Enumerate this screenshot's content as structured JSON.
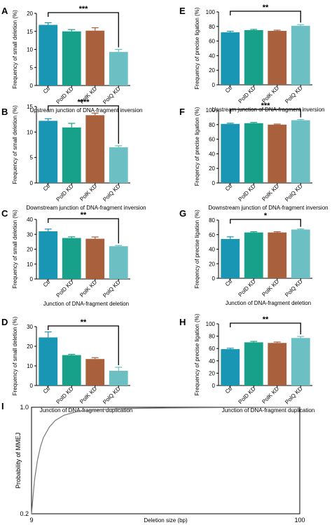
{
  "colors": [
    "#1a96b5",
    "#17a08a",
    "#a9603c",
    "#6cbfc3"
  ],
  "bar_panels": [
    {
      "panel_letter": "A",
      "ylabel": "Frequency of small deletion (%)",
      "xlabel": "Upstream junction of DNA-fragment inversion",
      "sig": "***",
      "sig_between": [
        0,
        3
      ],
      "yticks": [
        "0",
        "5",
        "10",
        "15",
        "20"
      ]
    },
    {
      "panel_letter": "B",
      "ylabel": "Frequency of small deletion (%)",
      "xlabel": "Downstream junction of DNA-fragment inversion",
      "sig": "****",
      "sig_between": [
        0,
        3
      ],
      "yticks": [
        "0",
        "5",
        "10",
        "15"
      ]
    },
    {
      "panel_letter": "C",
      "ylabel": "Frequency of small deletion (%)",
      "xlabel": "Junction of DNA-fragment deletion",
      "sig": "**",
      "sig_between": [
        0,
        3
      ],
      "yticks": [
        "0",
        "10",
        "20",
        "30",
        "40"
      ]
    },
    {
      "panel_letter": "D",
      "ylabel": "Frequency of small deletion (%)",
      "xlabel": "Junction of DNA-fragment duplication",
      "sig": "**",
      "sig_between": [
        0,
        3
      ],
      "yticks": [
        "0",
        "10",
        "20",
        "30"
      ]
    },
    {
      "panel_letter": "E",
      "ylabel": "Frequency of precise ligation (%)",
      "xlabel": "Upstream junction of DNA-fragment inversion",
      "sig": "**",
      "sig_between": [
        0,
        3
      ],
      "yticks": [
        "0",
        "20",
        "40",
        "60",
        "80",
        "100"
      ]
    },
    {
      "panel_letter": "F",
      "ylabel": "Freqency of precise ligation (%)",
      "xlabel": "Downstream junction of DNA-fragment inversion",
      "sig": "***",
      "sig_between": [
        0,
        3
      ],
      "yticks": [
        "0",
        "20",
        "40",
        "60",
        "80",
        "100"
      ]
    },
    {
      "panel_letter": "G",
      "ylabel": "Freqency of precise ligation (%)",
      "xlabel": "Junction of DNA-fragment deletion",
      "sig": "*",
      "sig_between": [
        0,
        3
      ],
      "yticks": [
        "0",
        "20",
        "40",
        "60",
        "80"
      ]
    },
    {
      "panel_letter": "H",
      "ylabel": "Frequency of precise ligation (%)",
      "xlabel": "Junction of DNA-fragment duplication",
      "sig": "**",
      "sig_between": [
        0,
        3
      ],
      "yticks": [
        "0",
        "20",
        "40",
        "60",
        "80",
        "100"
      ]
    }
  ],
  "line_panel": {
    "panel_letter": "I",
    "ylabel": "Probability of MMEJ",
    "xlabel": "Deletion size (bp)",
    "xticks": [
      "9",
      "100"
    ],
    "yticks": [
      "0.2",
      "1.0"
    ]
  },
  "chart_data": [
    {
      "type": "bar",
      "panel": "A",
      "categories": [
        "Ctl",
        "PolD KD",
        "PolK KD",
        "PolQ KD"
      ],
      "values": [
        16.8,
        15.0,
        15.2,
        9.3
      ],
      "errors": [
        0.6,
        0.5,
        0.8,
        0.7
      ],
      "ylim": [
        0,
        20
      ],
      "ylabel": "Frequency of small deletion (%)",
      "xlabel": "Upstream junction of DNA-fragment inversion"
    },
    {
      "type": "bar",
      "panel": "B",
      "categories": [
        "Ctl",
        "PolD KD",
        "PolK KD",
        "PolQ KD"
      ],
      "values": [
        12.2,
        10.9,
        13.3,
        7.0
      ],
      "errors": [
        0.4,
        0.8,
        0.4,
        0.3
      ],
      "ylim": [
        0,
        15
      ],
      "ylabel": "Frequency of small deletion (%)",
      "xlabel": "Downstream junction of DNA-fragment inversion"
    },
    {
      "type": "bar",
      "panel": "C",
      "categories": [
        "Ctl",
        "PolD KD",
        "PolK KD",
        "PolQ KD"
      ],
      "values": [
        32.0,
        27.5,
        27.0,
        22.0
      ],
      "errors": [
        1.5,
        0.8,
        1.2,
        0.5
      ],
      "ylim": [
        0,
        40
      ],
      "ylabel": "Frequency of small deletion (%)",
      "xlabel": "Junction of DNA-fragment deletion"
    },
    {
      "type": "bar",
      "panel": "D",
      "categories": [
        "Ctl",
        "PolD KD",
        "PolK KD",
        "PolQ KD"
      ],
      "values": [
        24.5,
        15.5,
        13.5,
        7.5
      ],
      "errors": [
        2.8,
        0.4,
        0.7,
        1.8
      ],
      "ylim": [
        0,
        30
      ],
      "ylabel": "Frequency of small deletion (%)",
      "xlabel": "Junction of DNA-fragment duplication"
    },
    {
      "type": "bar",
      "panel": "E",
      "categories": [
        "Ctl",
        "PolD KD",
        "PolK KD",
        "PolQ KD"
      ],
      "values": [
        72,
        75,
        74,
        81
      ],
      "errors": [
        1.5,
        1.0,
        1.0,
        1.5
      ],
      "ylim": [
        0,
        100
      ],
      "ylabel": "Frequency of precise ligation (%)",
      "xlabel": "Upstream junction of DNA-fragment inversion"
    },
    {
      "type": "bar",
      "panel": "F",
      "categories": [
        "Ctl",
        "PolD KD",
        "PolK KD",
        "PolQ KD"
      ],
      "values": [
        81,
        82,
        80,
        86
      ],
      "errors": [
        1.0,
        1.0,
        0.8,
        1.0
      ],
      "ylim": [
        0,
        100
      ],
      "ylabel": "Freqency of precise ligation (%)",
      "xlabel": "Downstream junction of DNA-fragment inversion"
    },
    {
      "type": "bar",
      "panel": "G",
      "categories": [
        "Ctl",
        "PolD KD",
        "PolK KD",
        "PolQ KD"
      ],
      "values": [
        54,
        63,
        63,
        67
      ],
      "errors": [
        3.0,
        1.0,
        1.0,
        0.8
      ],
      "ylim": [
        0,
        80
      ],
      "ylabel": "Freqency of precise ligation (%)",
      "xlabel": "Junction of DNA-fragment deletion"
    },
    {
      "type": "bar",
      "panel": "H",
      "categories": [
        "Ctl",
        "PolD KD",
        "PolK KD",
        "PolQ KD"
      ],
      "values": [
        59,
        70,
        69,
        77
      ],
      "errors": [
        1.5,
        1.5,
        1.5,
        2.5
      ],
      "ylim": [
        0,
        100
      ],
      "ylabel": "Frequency of precise ligation (%)",
      "xlabel": "Junction of DNA-fragment duplication"
    },
    {
      "type": "line",
      "panel": "I",
      "x": [
        9,
        10,
        11,
        12,
        13,
        15,
        17,
        20,
        24,
        30,
        40,
        55,
        75,
        100
      ],
      "y": [
        0.2,
        0.45,
        0.6,
        0.7,
        0.77,
        0.85,
        0.9,
        0.94,
        0.965,
        0.98,
        0.99,
        0.995,
        0.998,
        1.0
      ],
      "xlim": [
        9,
        100
      ],
      "ylim": [
        0.2,
        1.0
      ],
      "xlabel": "Deletion size (bp)",
      "ylabel": "Probability of MMEJ"
    }
  ]
}
